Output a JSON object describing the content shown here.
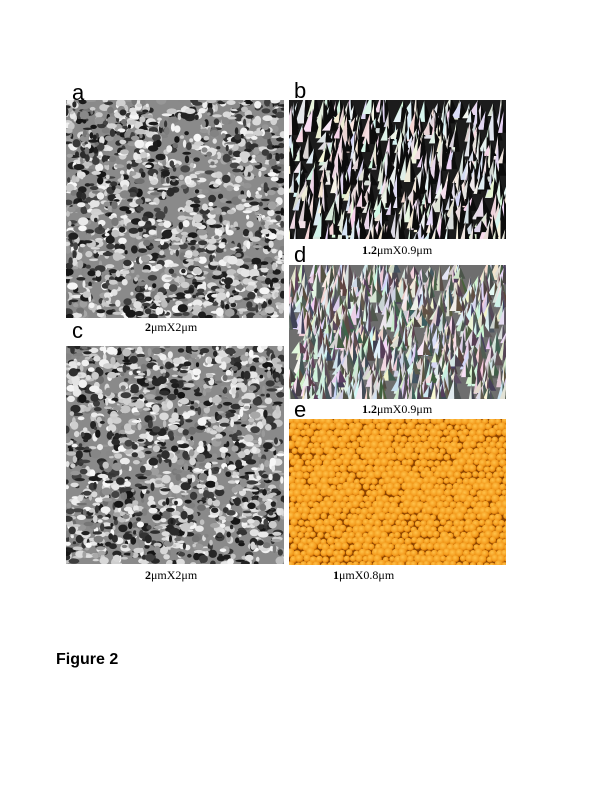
{
  "figure_label": "Figure 2",
  "panels": {
    "a": {
      "letter": "a",
      "caption_bold": "2",
      "caption_rest": "μmX2μm",
      "style": "afm-gray-texture"
    },
    "b": {
      "letter": "b",
      "caption_bold": "1.2",
      "caption_rest": "μmX0.9μm",
      "style": "afm-3d-spikes-dark"
    },
    "c": {
      "letter": "c",
      "caption_bold": "2",
      "caption_rest": "μmX2μm",
      "style": "afm-gray-texture"
    },
    "d": {
      "letter": "d",
      "caption_bold": "1.2",
      "caption_rest": "μmX0.9μm",
      "style": "afm-3d-spikes-light"
    },
    "e": {
      "letter": "e",
      "caption_bold": "1",
      "caption_rest": "μmX0.8μm",
      "style": "afm-orange-grains"
    }
  },
  "colors": {
    "gray_dark": "#1a1a1a",
    "gray_light": "#e6e6e6",
    "orange_base": "#c96a00",
    "orange_light": "#ffc24a"
  }
}
